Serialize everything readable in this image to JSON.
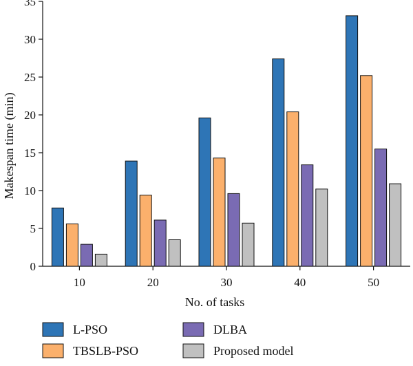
{
  "chart_data": {
    "type": "bar",
    "xlabel": "No. of tasks",
    "ylabel": "Makespan time (min)",
    "categories": [
      "10",
      "20",
      "30",
      "40",
      "50"
    ],
    "ylim": [
      0,
      35
    ],
    "yticks": [
      0,
      5,
      10,
      15,
      20,
      25,
      30,
      35
    ],
    "grid": false,
    "legend_position": "bottom",
    "series": [
      {
        "name": "L-PSO",
        "color": "#2e75b6",
        "values": [
          7.7,
          13.9,
          19.6,
          27.4,
          33.1
        ]
      },
      {
        "name": "TBSLB-PSO",
        "color": "#fbb06c",
        "values": [
          5.6,
          9.4,
          14.3,
          20.4,
          25.2
        ]
      },
      {
        "name": "DLBA",
        "color": "#7a6bb3",
        "values": [
          2.9,
          6.1,
          9.6,
          13.4,
          15.5
        ]
      },
      {
        "name": "Proposed model",
        "color": "#c0c0c0",
        "values": [
          1.6,
          3.5,
          5.7,
          10.2,
          10.9
        ]
      }
    ]
  }
}
